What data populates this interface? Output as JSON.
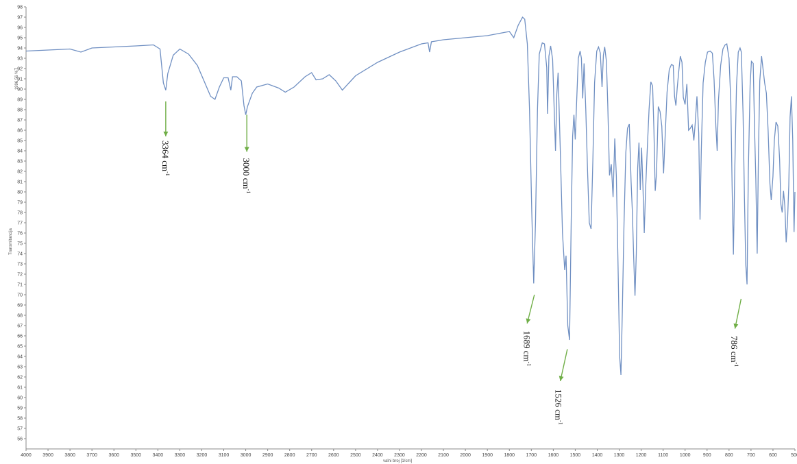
{
  "chart_data": {
    "type": "line",
    "title": "",
    "xlabel": "valni broj [1/cm]",
    "ylabel": "Transmitancija",
    "corner_label": "1996.56 %T",
    "xlim": [
      4000,
      500
    ],
    "ylim": [
      55,
      98
    ],
    "x_ticks": [
      4000,
      3900,
      3800,
      3700,
      3600,
      3500,
      3400,
      3300,
      3200,
      3100,
      3000,
      2900,
      2800,
      2700,
      2600,
      2500,
      2400,
      2300,
      2200,
      2100,
      2000,
      1900,
      1800,
      1700,
      1600,
      1500,
      1400,
      1300,
      1200,
      1100,
      1000,
      900,
      800,
      700,
      600,
      500
    ],
    "y_ticks": [
      56,
      57,
      58,
      59,
      60,
      61,
      62,
      63,
      64,
      65,
      66,
      67,
      68,
      69,
      70,
      71,
      72,
      73,
      74,
      75,
      76,
      77,
      78,
      79,
      80,
      81,
      82,
      83,
      84,
      85,
      86,
      87,
      88,
      89,
      90,
      91,
      92,
      93,
      94,
      95,
      96,
      97,
      98
    ],
    "line_color": "#6f8fc2",
    "series": [
      {
        "points": [
          [
            4000,
            93.7
          ],
          [
            3900,
            93.8
          ],
          [
            3800,
            93.9
          ],
          [
            3750,
            93.6
          ],
          [
            3700,
            94.0
          ],
          [
            3600,
            94.1
          ],
          [
            3500,
            94.2
          ],
          [
            3420,
            94.3
          ],
          [
            3390,
            93.9
          ],
          [
            3375,
            90.6
          ],
          [
            3364,
            89.9
          ],
          [
            3355,
            91.5
          ],
          [
            3330,
            93.3
          ],
          [
            3300,
            93.9
          ],
          [
            3260,
            93.4
          ],
          [
            3220,
            92.3
          ],
          [
            3190,
            90.8
          ],
          [
            3160,
            89.3
          ],
          [
            3140,
            89.0
          ],
          [
            3120,
            90.2
          ],
          [
            3100,
            91.1
          ],
          [
            3080,
            91.1
          ],
          [
            3068,
            89.9
          ],
          [
            3060,
            91.2
          ],
          [
            3040,
            91.2
          ],
          [
            3020,
            90.8
          ],
          [
            3008,
            88.4
          ],
          [
            3000,
            87.5
          ],
          [
            2992,
            88.3
          ],
          [
            2970,
            89.6
          ],
          [
            2950,
            90.2
          ],
          [
            2900,
            90.5
          ],
          [
            2850,
            90.1
          ],
          [
            2820,
            89.7
          ],
          [
            2780,
            90.2
          ],
          [
            2730,
            91.2
          ],
          [
            2700,
            91.6
          ],
          [
            2680,
            90.9
          ],
          [
            2650,
            91.0
          ],
          [
            2620,
            91.4
          ],
          [
            2590,
            90.8
          ],
          [
            2560,
            89.9
          ],
          [
            2530,
            90.6
          ],
          [
            2500,
            91.3
          ],
          [
            2400,
            92.6
          ],
          [
            2300,
            93.6
          ],
          [
            2200,
            94.4
          ],
          [
            2170,
            94.5
          ],
          [
            2163,
            93.6
          ],
          [
            2155,
            94.6
          ],
          [
            2100,
            94.8
          ],
          [
            2000,
            95.0
          ],
          [
            1900,
            95.2
          ],
          [
            1850,
            95.4
          ],
          [
            1800,
            95.6
          ],
          [
            1780,
            95.0
          ],
          [
            1760,
            96.2
          ],
          [
            1740,
            97.0
          ],
          [
            1730,
            96.8
          ],
          [
            1718,
            94.4
          ],
          [
            1708,
            88.0
          ],
          [
            1698,
            78.0
          ],
          [
            1689,
            71.1
          ],
          [
            1681,
            77.0
          ],
          [
            1672,
            88.0
          ],
          [
            1664,
            93.4
          ],
          [
            1650,
            94.5
          ],
          [
            1640,
            94.4
          ],
          [
            1630,
            92.1
          ],
          [
            1626,
            87.6
          ],
          [
            1620,
            93.2
          ],
          [
            1612,
            94.2
          ],
          [
            1603,
            92.9
          ],
          [
            1596,
            88.0
          ],
          [
            1590,
            84.0
          ],
          [
            1584,
            89.5
          ],
          [
            1578,
            91.6
          ],
          [
            1568,
            84.0
          ],
          [
            1558,
            76.0
          ],
          [
            1548,
            72.4
          ],
          [
            1542,
            73.8
          ],
          [
            1534,
            67.0
          ],
          [
            1526,
            65.6
          ],
          [
            1518,
            78.0
          ],
          [
            1512,
            85.4
          ],
          [
            1506,
            87.5
          ],
          [
            1500,
            85.1
          ],
          [
            1494,
            88.7
          ],
          [
            1486,
            93.0
          ],
          [
            1478,
            93.7
          ],
          [
            1472,
            93.0
          ],
          [
            1466,
            89.1
          ],
          [
            1460,
            92.5
          ],
          [
            1452,
            88.0
          ],
          [
            1444,
            82.0
          ],
          [
            1436,
            77.0
          ],
          [
            1428,
            76.4
          ],
          [
            1420,
            83.0
          ],
          [
            1412,
            90.6
          ],
          [
            1402,
            93.7
          ],
          [
            1394,
            94.1
          ],
          [
            1386,
            93.5
          ],
          [
            1378,
            90.2
          ],
          [
            1372,
            93.3
          ],
          [
            1366,
            94.1
          ],
          [
            1358,
            92.7
          ],
          [
            1352,
            88.4
          ],
          [
            1344,
            81.6
          ],
          [
            1336,
            82.7
          ],
          [
            1328,
            79.5
          ],
          [
            1320,
            85.2
          ],
          [
            1313,
            81.5
          ],
          [
            1306,
            73.8
          ],
          [
            1298,
            64.0
          ],
          [
            1292,
            62.2
          ],
          [
            1286,
            68.0
          ],
          [
            1278,
            77.0
          ],
          [
            1270,
            83.8
          ],
          [
            1262,
            86.2
          ],
          [
            1254,
            86.6
          ],
          [
            1246,
            81.0
          ],
          [
            1240,
            78.0
          ],
          [
            1234,
            73.6
          ],
          [
            1228,
            69.9
          ],
          [
            1222,
            74.0
          ],
          [
            1216,
            82.3
          ],
          [
            1210,
            84.8
          ],
          [
            1204,
            80.2
          ],
          [
            1198,
            84.3
          ],
          [
            1192,
            80.5
          ],
          [
            1186,
            76.0
          ],
          [
            1180,
            80.1
          ],
          [
            1172,
            84.3
          ],
          [
            1164,
            88.0
          ],
          [
            1156,
            90.7
          ],
          [
            1148,
            90.3
          ],
          [
            1142,
            86.1
          ],
          [
            1136,
            80.1
          ],
          [
            1130,
            81.8
          ],
          [
            1122,
            88.3
          ],
          [
            1114,
            87.8
          ],
          [
            1106,
            86.4
          ],
          [
            1098,
            81.8
          ],
          [
            1090,
            85.9
          ],
          [
            1082,
            89.7
          ],
          [
            1072,
            91.9
          ],
          [
            1062,
            92.4
          ],
          [
            1054,
            92.3
          ],
          [
            1048,
            89.3
          ],
          [
            1042,
            88.4
          ],
          [
            1036,
            90.1
          ],
          [
            1028,
            91.9
          ],
          [
            1022,
            93.2
          ],
          [
            1014,
            92.6
          ],
          [
            1008,
            89.2
          ],
          [
            1000,
            88.5
          ],
          [
            992,
            90.5
          ],
          [
            984,
            86.0
          ],
          [
            976,
            86.2
          ],
          [
            968,
            86.5
          ],
          [
            960,
            85.0
          ],
          [
            954,
            86.7
          ],
          [
            946,
            89.3
          ],
          [
            938,
            85.7
          ],
          [
            932,
            77.3
          ],
          [
            926,
            84.2
          ],
          [
            918,
            90.6
          ],
          [
            908,
            92.6
          ],
          [
            898,
            93.6
          ],
          [
            886,
            93.7
          ],
          [
            876,
            93.5
          ],
          [
            868,
            90.9
          ],
          [
            860,
            86.4
          ],
          [
            854,
            84.0
          ],
          [
            848,
            88.9
          ],
          [
            838,
            92.3
          ],
          [
            828,
            93.9
          ],
          [
            818,
            94.3
          ],
          [
            810,
            94.4
          ],
          [
            800,
            93.0
          ],
          [
            792,
            88.8
          ],
          [
            786,
            80.6
          ],
          [
            780,
            73.9
          ],
          [
            774,
            82.1
          ],
          [
            766,
            90.3
          ],
          [
            758,
            93.6
          ],
          [
            750,
            94.0
          ],
          [
            744,
            93.6
          ],
          [
            736,
            87.6
          ],
          [
            730,
            79.4
          ],
          [
            724,
            73.0
          ],
          [
            718,
            71.0
          ],
          [
            712,
            82.1
          ],
          [
            704,
            90.4
          ],
          [
            698,
            92.7
          ],
          [
            690,
            92.5
          ],
          [
            684,
            86.3
          ],
          [
            678,
            81.3
          ],
          [
            672,
            74.0
          ],
          [
            666,
            83.9
          ],
          [
            660,
            90.8
          ],
          [
            652,
            93.2
          ],
          [
            646,
            92.1
          ],
          [
            638,
            90.6
          ],
          [
            630,
            89.6
          ],
          [
            622,
            85.9
          ],
          [
            614,
            80.8
          ],
          [
            608,
            79.2
          ],
          [
            600,
            81.5
          ],
          [
            594,
            85.0
          ],
          [
            586,
            86.8
          ],
          [
            578,
            86.4
          ],
          [
            570,
            83.2
          ],
          [
            564,
            78.8
          ],
          [
            558,
            78.0
          ],
          [
            552,
            80.1
          ],
          [
            546,
            78.6
          ],
          [
            540,
            75.1
          ],
          [
            534,
            77.0
          ],
          [
            528,
            80.6
          ],
          [
            522,
            87.3
          ],
          [
            516,
            89.3
          ],
          [
            510,
            85.0
          ],
          [
            504,
            76.1
          ],
          [
            500,
            80.0
          ]
        ]
      }
    ],
    "annotations": [
      {
        "text": "3364 cm",
        "sup": "-1",
        "arrow_from": [
          3364,
          88.8
        ],
        "arrow_to": [
          3364,
          85.4
        ],
        "text_at": [
          3364,
          85.0
        ],
        "rotation": 90,
        "arrow_color": "#6fae46"
      },
      {
        "text": "3000 cm",
        "sup": "-1",
        "arrow_from": [
          2995,
          87.5
        ],
        "arrow_to": [
          2995,
          83.9
        ],
        "text_at": [
          2995,
          83.3
        ],
        "rotation": 90,
        "arrow_color": "#6fae46"
      },
      {
        "text": "1689 cm",
        "sup": "-1",
        "arrow_from": [
          1686,
          70.0
        ],
        "arrow_to": [
          1719,
          67.2
        ],
        "text_at": [
          1718,
          66.5
        ],
        "rotation": 90,
        "arrow_color": "#6fae46"
      },
      {
        "text": "1526 cm",
        "sup": "-1",
        "arrow_from": [
          1536,
          64.7
        ],
        "arrow_to": [
          1568,
          61.6
        ],
        "text_at": [
          1574,
          60.8
        ],
        "rotation": 90,
        "arrow_color": "#6fae46"
      },
      {
        "text": "786 cm",
        "sup": "-1",
        "arrow_from": [
          745,
          69.6
        ],
        "arrow_to": [
          773,
          66.7
        ],
        "text_at": [
          774,
          66.0
        ],
        "rotation": 90,
        "arrow_color": "#6fae46"
      }
    ],
    "grid": false
  }
}
